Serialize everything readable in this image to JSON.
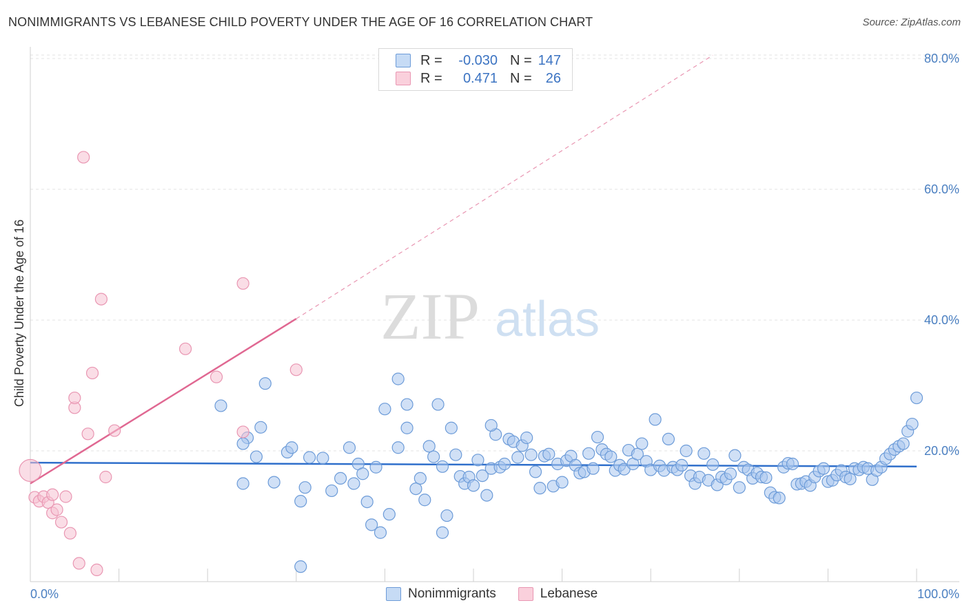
{
  "title": "NONIMMIGRANTS VS LEBANESE CHILD POVERTY UNDER THE AGE OF 16 CORRELATION CHART",
  "source": "Source: ZipAtlas.com",
  "watermark": {
    "zip": "ZIP",
    "atlas": "atlas"
  },
  "colors": {
    "blue_fill": "#a9c7ef",
    "blue_stroke": "#6c9bd8",
    "blue_line": "#2f6fcb",
    "pink_fill": "#f6c1d1",
    "pink_stroke": "#e996b2",
    "pink_line": "#e06892",
    "grid": "#e3e3e3",
    "tick_text": "#4a7fc1"
  },
  "legend": {
    "rows": [
      {
        "r_label": "R =",
        "r_value": "-0.030",
        "n_label": "N =",
        "n_value": "147"
      },
      {
        "r_label": "R =",
        "r_value": "0.471",
        "n_label": "N =",
        "n_value": "26"
      }
    ]
  },
  "bottom_legend": {
    "series1": "Nonimmigrants",
    "series2": "Lebanese"
  },
  "chart_data": {
    "type": "scatter",
    "title": "NONIMMIGRANTS VS LEBANESE CHILD POVERTY UNDER THE AGE OF 16 CORRELATION CHART",
    "xlabel": "",
    "ylabel": "Child Poverty Under the Age of 16",
    "xlim": [
      0,
      100
    ],
    "ylim": [
      0,
      82
    ],
    "x_ticks": [
      "0.0%",
      "100.0%"
    ],
    "y_ticks": [
      {
        "value": 20,
        "label": "20.0%"
      },
      {
        "value": 40,
        "label": "40.0%"
      },
      {
        "value": 60,
        "label": "60.0%"
      },
      {
        "value": 80,
        "label": "80.0%"
      }
    ],
    "series": [
      {
        "name": "Nonimmigrants",
        "r": -0.03,
        "n": 147,
        "trend": {
          "x0": 0,
          "y0": 18.2,
          "x1": 100,
          "y1": 17.6
        },
        "points": [
          [
            21.5,
            26.9
          ],
          [
            26.5,
            30.3
          ],
          [
            24.5,
            22.0
          ],
          [
            24.0,
            21.1
          ],
          [
            26.0,
            23.6
          ],
          [
            25.5,
            19.1
          ],
          [
            24.0,
            15.0
          ],
          [
            27.5,
            15.2
          ],
          [
            29.0,
            19.8
          ],
          [
            29.5,
            20.5
          ],
          [
            30.5,
            12.3
          ],
          [
            30.5,
            2.3
          ],
          [
            31.0,
            14.4
          ],
          [
            31.5,
            19.0
          ],
          [
            33.0,
            18.9
          ],
          [
            34.0,
            13.9
          ],
          [
            35.0,
            15.8
          ],
          [
            36.0,
            20.5
          ],
          [
            36.5,
            15.0
          ],
          [
            37.0,
            18.0
          ],
          [
            37.5,
            16.5
          ],
          [
            38.0,
            12.2
          ],
          [
            38.5,
            8.7
          ],
          [
            39.0,
            17.5
          ],
          [
            39.5,
            7.5
          ],
          [
            40.0,
            26.4
          ],
          [
            40.5,
            10.3
          ],
          [
            41.5,
            31.0
          ],
          [
            41.5,
            20.5
          ],
          [
            42.5,
            27.1
          ],
          [
            42.5,
            23.5
          ],
          [
            43.5,
            14.2
          ],
          [
            44.0,
            15.8
          ],
          [
            44.5,
            12.5
          ],
          [
            45.0,
            20.7
          ],
          [
            45.5,
            19.1
          ],
          [
            46.0,
            27.1
          ],
          [
            46.5,
            17.6
          ],
          [
            46.5,
            7.5
          ],
          [
            47.0,
            10.1
          ],
          [
            47.5,
            23.5
          ],
          [
            48.0,
            19.4
          ],
          [
            48.5,
            16.1
          ],
          [
            49.0,
            15.0
          ],
          [
            49.5,
            16.0
          ],
          [
            50.0,
            14.7
          ],
          [
            50.5,
            18.6
          ],
          [
            51.0,
            16.2
          ],
          [
            51.5,
            13.2
          ],
          [
            52.0,
            17.3
          ],
          [
            52.5,
            22.5
          ],
          [
            53.0,
            17.5
          ],
          [
            53.5,
            18.0
          ],
          [
            54.0,
            21.8
          ],
          [
            54.5,
            21.4
          ],
          [
            55.0,
            19.0
          ],
          [
            55.5,
            20.8
          ],
          [
            56.0,
            22.0
          ],
          [
            56.5,
            19.4
          ],
          [
            57.0,
            16.8
          ],
          [
            57.5,
            14.3
          ],
          [
            58.0,
            19.2
          ],
          [
            58.5,
            19.5
          ],
          [
            59.0,
            14.6
          ],
          [
            59.5,
            18.0
          ],
          [
            60.0,
            15.2
          ],
          [
            60.5,
            18.5
          ],
          [
            61.0,
            19.2
          ],
          [
            61.5,
            17.8
          ],
          [
            62.0,
            16.6
          ],
          [
            62.5,
            16.8
          ],
          [
            63.0,
            19.6
          ],
          [
            63.5,
            17.3
          ],
          [
            64.0,
            22.1
          ],
          [
            64.5,
            20.2
          ],
          [
            65.0,
            19.5
          ],
          [
            65.5,
            19.1
          ],
          [
            66.0,
            17.0
          ],
          [
            66.5,
            17.8
          ],
          [
            67.0,
            17.2
          ],
          [
            67.5,
            20.1
          ],
          [
            68.0,
            18.0
          ],
          [
            68.5,
            19.5
          ],
          [
            69.0,
            21.1
          ],
          [
            69.5,
            18.4
          ],
          [
            70.0,
            17.1
          ],
          [
            70.5,
            24.8
          ],
          [
            71.0,
            17.7
          ],
          [
            71.5,
            17.0
          ],
          [
            72.0,
            21.8
          ],
          [
            72.5,
            17.5
          ],
          [
            73.0,
            17.1
          ],
          [
            73.5,
            17.8
          ],
          [
            74.0,
            20.0
          ],
          [
            74.5,
            16.2
          ],
          [
            75.0,
            15.0
          ],
          [
            75.5,
            16.0
          ],
          [
            76.0,
            19.6
          ],
          [
            76.5,
            15.5
          ],
          [
            77.0,
            17.9
          ],
          [
            77.5,
            14.8
          ],
          [
            78.0,
            16.0
          ],
          [
            78.5,
            15.7
          ],
          [
            79.0,
            16.5
          ],
          [
            79.5,
            19.3
          ],
          [
            80.0,
            14.4
          ],
          [
            80.5,
            17.5
          ],
          [
            81.0,
            17.1
          ],
          [
            81.5,
            15.8
          ],
          [
            82.0,
            16.6
          ],
          [
            82.5,
            16.0
          ],
          [
            83.0,
            15.9
          ],
          [
            83.5,
            13.6
          ],
          [
            84.0,
            12.9
          ],
          [
            84.5,
            12.8
          ],
          [
            85.0,
            17.5
          ],
          [
            85.5,
            18.1
          ],
          [
            86.0,
            18.0
          ],
          [
            86.5,
            14.9
          ],
          [
            87.0,
            15.0
          ],
          [
            87.5,
            15.3
          ],
          [
            88.0,
            14.7
          ],
          [
            88.5,
            16.0
          ],
          [
            89.0,
            16.9
          ],
          [
            89.5,
            17.3
          ],
          [
            90.0,
            15.3
          ],
          [
            90.5,
            15.5
          ],
          [
            91.0,
            16.3
          ],
          [
            91.5,
            17.0
          ],
          [
            92.0,
            16.0
          ],
          [
            92.5,
            15.7
          ],
          [
            93.0,
            17.3
          ],
          [
            93.5,
            17.1
          ],
          [
            94.0,
            17.5
          ],
          [
            94.5,
            17.3
          ],
          [
            95.0,
            15.6
          ],
          [
            95.5,
            17.0
          ],
          [
            96.0,
            17.5
          ],
          [
            96.5,
            18.8
          ],
          [
            97.0,
            19.5
          ],
          [
            97.5,
            20.2
          ],
          [
            98.0,
            20.7
          ],
          [
            98.5,
            21.1
          ],
          [
            99.0,
            23.0
          ],
          [
            99.5,
            24.1
          ],
          [
            100.0,
            28.1
          ],
          [
            52.0,
            23.9
          ]
        ]
      },
      {
        "name": "Lebanese",
        "r": 0.471,
        "n": 26,
        "trend": {
          "x0": 0,
          "y0": 15.0,
          "x1": 30,
          "y1": 40.2
        },
        "trend_extension": {
          "x0": 30,
          "y0": 40.2,
          "x1": 77,
          "y1": 80.5
        },
        "points": [
          [
            0.0,
            17.0
          ],
          [
            0.5,
            12.9
          ],
          [
            1.0,
            12.3
          ],
          [
            1.5,
            13.0
          ],
          [
            2.0,
            12.1
          ],
          [
            2.5,
            10.5
          ],
          [
            2.5,
            13.3
          ],
          [
            3.0,
            11.0
          ],
          [
            3.5,
            9.1
          ],
          [
            4.0,
            13.0
          ],
          [
            4.5,
            7.4
          ],
          [
            5.0,
            26.6
          ],
          [
            5.0,
            28.1
          ],
          [
            5.5,
            2.8
          ],
          [
            6.0,
            64.9
          ],
          [
            6.5,
            22.6
          ],
          [
            7.0,
            31.9
          ],
          [
            7.5,
            1.8
          ],
          [
            8.0,
            43.2
          ],
          [
            8.5,
            16.0
          ],
          [
            9.5,
            23.1
          ],
          [
            17.5,
            35.6
          ],
          [
            21.0,
            31.3
          ],
          [
            24.0,
            22.9
          ],
          [
            24.0,
            45.6
          ],
          [
            30.0,
            32.4
          ]
        ]
      }
    ]
  }
}
